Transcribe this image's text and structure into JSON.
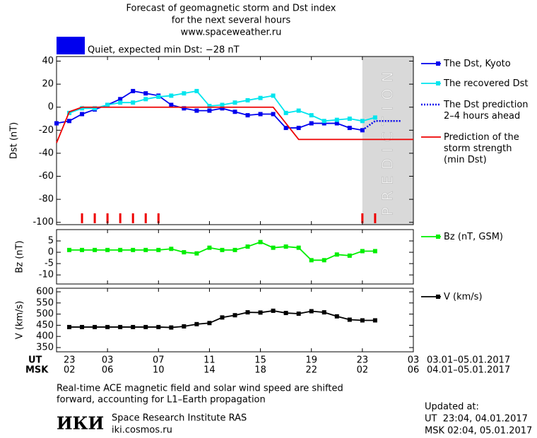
{
  "header": {
    "title": [
      "Forecast of geomagnetic storm and Dst index",
      "for the next several hours",
      "www.spaceweather.ru"
    ],
    "status": "Quiet, expected min Dst: −28 nT",
    "status_color": "#0000ee"
  },
  "chart_data": [
    {
      "type": "line",
      "ylabel": "Dst (nT)",
      "xlim": [
        23,
        51
      ],
      "ylim": [
        -102,
        44
      ],
      "yticks": [
        40,
        20,
        0,
        -20,
        -40,
        -60,
        -80,
        -100
      ],
      "prediction": {
        "label": "PREDICTION",
        "from": 47
      },
      "markers": {
        "color": "#ee0000",
        "x": [
          25,
          26,
          27,
          28,
          29,
          30,
          31,
          47,
          48
        ]
      },
      "series": [
        {
          "name": "The Dst, Kyoto",
          "color": "#0000ee",
          "style": "solid",
          "marker": true,
          "x": [
            23,
            24,
            25,
            26,
            27,
            28,
            29,
            30,
            31,
            32,
            33,
            34,
            35,
            36,
            37,
            38,
            39,
            40,
            41,
            42,
            43,
            44,
            45,
            46,
            47
          ],
          "values": [
            -14,
            -12,
            -6,
            -2,
            2,
            7,
            14,
            12,
            10,
            2,
            -1,
            -3,
            -3,
            -1,
            -4,
            -7,
            -6,
            -6,
            -18,
            -18,
            -14,
            -14,
            -14,
            -18,
            -20
          ]
        },
        {
          "name": "The recovered Dst",
          "color": "#00e5ee",
          "style": "solid",
          "marker": true,
          "x": [
            24,
            25,
            26,
            27,
            28,
            29,
            30,
            31,
            32,
            33,
            34,
            35,
            36,
            37,
            38,
            39,
            40,
            41,
            42,
            43,
            44,
            45,
            46,
            47,
            48
          ],
          "values": [
            -5,
            -1,
            -1,
            2,
            4,
            4,
            7,
            9,
            10,
            12,
            14,
            1,
            2,
            4,
            6,
            8,
            10,
            -5,
            -3,
            -7,
            -12,
            -11,
            -10,
            -12,
            -9
          ]
        },
        {
          "name": "The Dst prediction\n2–4 hours ahead",
          "color": "#0000ee",
          "style": "dotted",
          "marker": false,
          "x": [
            47,
            48,
            49,
            50
          ],
          "values": [
            -20,
            -12,
            -12,
            -12
          ]
        },
        {
          "name": "Prediction of the\nstorm strength\n(min Dst)",
          "color": "#ee0000",
          "style": "solid",
          "marker": false,
          "x": [
            23,
            24,
            25,
            40,
            42,
            51
          ],
          "values": [
            -31,
            -4,
            0,
            0,
            -28,
            -28
          ]
        }
      ]
    },
    {
      "type": "line",
      "ylabel": "Bz (nT)",
      "xlim": [
        23,
        51
      ],
      "ylim": [
        -14,
        10
      ],
      "yticks": [
        5,
        0,
        -5,
        -10
      ],
      "series": [
        {
          "name": "Bz (nT, GSM)",
          "color": "#00ee00",
          "style": "solid",
          "marker": true,
          "x": [
            24,
            25,
            26,
            27,
            28,
            29,
            30,
            31,
            32,
            33,
            34,
            35,
            36,
            37,
            38,
            39,
            40,
            41,
            42,
            43,
            44,
            45,
            46,
            47,
            48
          ],
          "values": [
            1,
            1,
            1,
            1,
            1,
            1,
            1,
            1,
            1.5,
            0,
            -0.5,
            2,
            1,
            1,
            2.5,
            4.5,
            2,
            2.5,
            2,
            -3.5,
            -3.5,
            -1,
            -1.5,
            0.5,
            0.5
          ]
        }
      ]
    },
    {
      "type": "line",
      "ylabel": "V (km/s)",
      "xlim": [
        23,
        51
      ],
      "ylim": [
        331,
        616
      ],
      "yticks": [
        600,
        550,
        500,
        450,
        400,
        350
      ],
      "xaxis_label": "UT",
      "x2axis_label": "MSK",
      "xrange_label": "03.01–05.01.2017",
      "x2range_label": "04.01–05.01.2017",
      "xticks": [
        {
          "value": 23,
          "label": "23"
        },
        {
          "value": 27,
          "label": "03"
        },
        {
          "value": 31,
          "label": "07"
        },
        {
          "value": 35,
          "label": "11"
        },
        {
          "value": 39,
          "label": "15"
        },
        {
          "value": 43,
          "label": "19"
        },
        {
          "value": 47,
          "label": "23"
        },
        {
          "value": 51,
          "label": "03"
        }
      ],
      "x2ticks": [
        {
          "value": 23,
          "label": "02"
        },
        {
          "value": 27,
          "label": "06"
        },
        {
          "value": 31,
          "label": "10"
        },
        {
          "value": 35,
          "label": "14"
        },
        {
          "value": 39,
          "label": "18"
        },
        {
          "value": 43,
          "label": "22"
        },
        {
          "value": 47,
          "label": "02"
        },
        {
          "value": 51,
          "label": "06"
        }
      ],
      "series": [
        {
          "name": "V (km/s)",
          "color": "#000000",
          "style": "solid",
          "marker": true,
          "x": [
            24,
            25,
            26,
            27,
            28,
            29,
            30,
            31,
            32,
            33,
            34,
            35,
            36,
            37,
            38,
            39,
            40,
            41,
            42,
            43,
            44,
            45,
            46,
            47,
            48
          ],
          "values": [
            442,
            442,
            442,
            442,
            442,
            442,
            442,
            442,
            440,
            445,
            455,
            460,
            485,
            495,
            508,
            507,
            515,
            505,
            502,
            513,
            508,
            490,
            475,
            472,
            472
          ]
        }
      ]
    }
  ],
  "footer": {
    "note": [
      "Real-time ACE magnetic field and solar wind speed are shifted",
      "forward, accounting for L1–Earth propagation"
    ],
    "logo": "ИКИ",
    "institute": "Space Research Institute RAS",
    "url": "iki.cosmos.ru",
    "updated": [
      "Updated at:",
      "UT  23:04, 04.01.2017",
      "MSK 02:04, 05.01.2017"
    ]
  }
}
